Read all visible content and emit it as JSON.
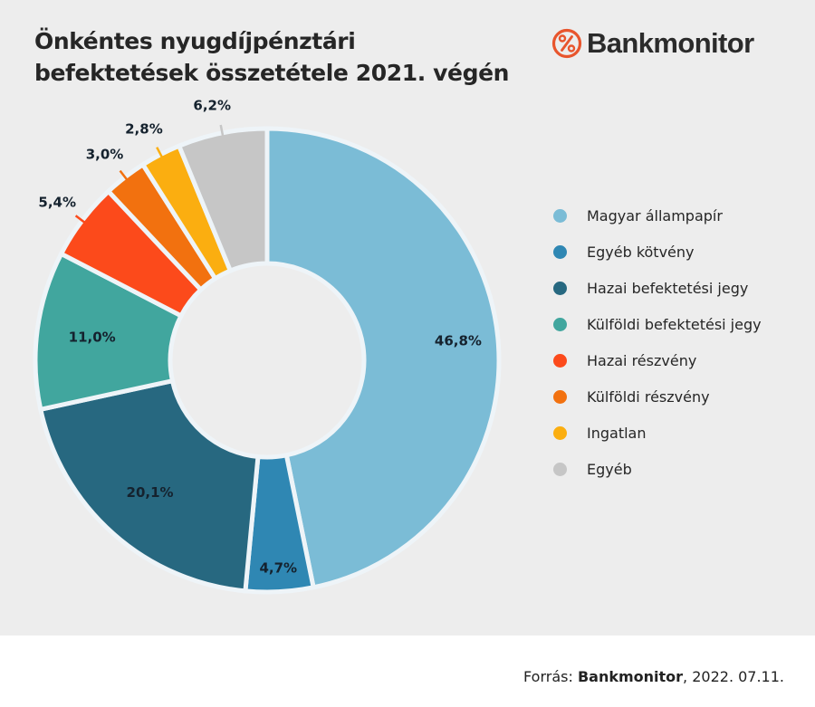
{
  "header": {
    "title_lines": [
      "Önkéntes nyugdíjpénztári",
      "befektetések összetétele 2021. végén"
    ],
    "brand": {
      "name": "Bankmonitor",
      "icon": "percent-circle-icon",
      "color": "#e8552d"
    }
  },
  "footer": {
    "prefix": "Forrás: ",
    "source": "Bankmonitor",
    "suffix": ", 2022. 07.11."
  },
  "chart_data": {
    "type": "pie",
    "subtype": "donut",
    "title": "Önkéntes nyugdíjpénztári befektetések összetétele 2021. végén",
    "unit": "%",
    "start_angle_deg": 0,
    "direction": "clockwise",
    "categories": [
      "Magyar állampapír",
      "Egyéb kötvény",
      "Hazai befektetési jegy",
      "Külföldi befektetési jegy",
      "Hazai részvény",
      "Külföldi részvény",
      "Ingatlan",
      "Egyéb"
    ],
    "values": [
      46.8,
      4.7,
      20.1,
      11.0,
      5.4,
      3.0,
      2.8,
      6.2
    ],
    "labels": [
      "46,8%",
      "4,7%",
      "20,1%",
      "11,0%",
      "5,4%",
      "3,0%",
      "2,8%",
      "6,2%"
    ],
    "label_placement": [
      "inside",
      "inside",
      "inside",
      "inside",
      "outside",
      "outside",
      "outside",
      "outside"
    ],
    "colors": [
      "#7bbcd6",
      "#2f87b3",
      "#276880",
      "#41a69e",
      "#fc4a1b",
      "#f2710f",
      "#fbae10",
      "#c6c6c6"
    ],
    "legend_position": "right",
    "source": "Forrás: Bankmonitor, 2022. 07.11."
  }
}
